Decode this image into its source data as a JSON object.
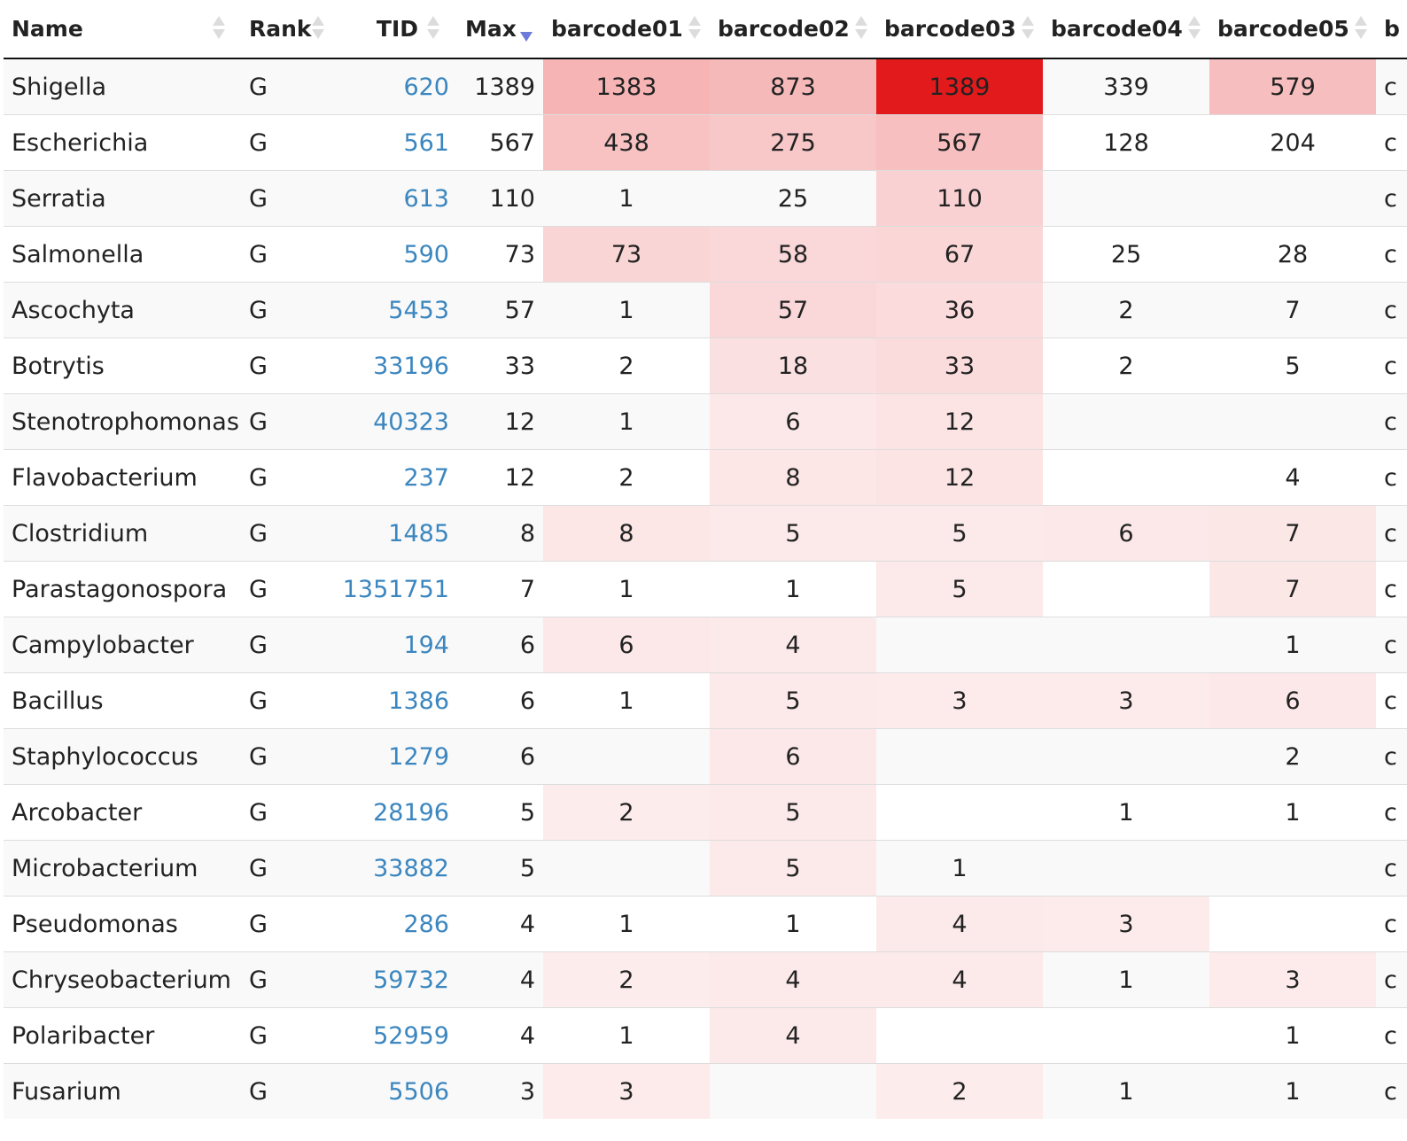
{
  "columns": {
    "name": "Name",
    "rank": "Rank",
    "tid": "TID",
    "max": "Max",
    "barcodes": [
      "barcode01",
      "barcode02",
      "barcode03",
      "barcode04",
      "barcode05"
    ],
    "next_partial": "b"
  },
  "sort": {
    "column": "Max",
    "direction": "descending"
  },
  "colors": {
    "heat_max": "#e31a1c",
    "link": "#3b86bf",
    "sort_active": "#6c7ad9"
  },
  "rows": [
    {
      "name": "Shigella",
      "rank": "G",
      "tid": "620",
      "max": "1389",
      "counts": [
        "1383",
        "873",
        "1389",
        "339",
        "579"
      ],
      "next_partial": "c"
    },
    {
      "name": "Escherichia",
      "rank": "G",
      "tid": "561",
      "max": "567",
      "counts": [
        "438",
        "275",
        "567",
        "128",
        "204"
      ],
      "next_partial": "c"
    },
    {
      "name": "Serratia",
      "rank": "G",
      "tid": "613",
      "max": "110",
      "counts": [
        "1",
        "25",
        "110",
        "",
        ""
      ],
      "next_partial": "c"
    },
    {
      "name": "Salmonella",
      "rank": "G",
      "tid": "590",
      "max": "73",
      "counts": [
        "73",
        "58",
        "67",
        "25",
        "28"
      ],
      "next_partial": "c"
    },
    {
      "name": "Ascochyta",
      "rank": "G",
      "tid": "5453",
      "max": "57",
      "counts": [
        "1",
        "57",
        "36",
        "2",
        "7"
      ],
      "next_partial": "c"
    },
    {
      "name": "Botrytis",
      "rank": "G",
      "tid": "33196",
      "max": "33",
      "counts": [
        "2",
        "18",
        "33",
        "2",
        "5"
      ],
      "next_partial": "c"
    },
    {
      "name": "Stenotrophomonas",
      "rank": "G",
      "tid": "40323",
      "max": "12",
      "counts": [
        "1",
        "6",
        "12",
        "",
        ""
      ],
      "next_partial": "c"
    },
    {
      "name": "Flavobacterium",
      "rank": "G",
      "tid": "237",
      "max": "12",
      "counts": [
        "2",
        "8",
        "12",
        "",
        "4"
      ],
      "next_partial": "c"
    },
    {
      "name": "Clostridium",
      "rank": "G",
      "tid": "1485",
      "max": "8",
      "counts": [
        "8",
        "5",
        "5",
        "6",
        "7"
      ],
      "next_partial": "c"
    },
    {
      "name": "Parastagonospora",
      "rank": "G",
      "tid": "1351751",
      "max": "7",
      "counts": [
        "1",
        "1",
        "5",
        "",
        "7"
      ],
      "next_partial": "c"
    },
    {
      "name": "Campylobacter",
      "rank": "G",
      "tid": "194",
      "max": "6",
      "counts": [
        "6",
        "4",
        "",
        "",
        "1"
      ],
      "next_partial": "c"
    },
    {
      "name": "Bacillus",
      "rank": "G",
      "tid": "1386",
      "max": "6",
      "counts": [
        "1",
        "5",
        "3",
        "3",
        "6"
      ],
      "next_partial": "c"
    },
    {
      "name": "Staphylococcus",
      "rank": "G",
      "tid": "1279",
      "max": "6",
      "counts": [
        "",
        "6",
        "",
        "",
        "2"
      ],
      "next_partial": "c"
    },
    {
      "name": "Arcobacter",
      "rank": "G",
      "tid": "28196",
      "max": "5",
      "counts": [
        "2",
        "5",
        "",
        "1",
        "1"
      ],
      "next_partial": "c"
    },
    {
      "name": "Microbacterium",
      "rank": "G",
      "tid": "33882",
      "max": "5",
      "counts": [
        "",
        "5",
        "1",
        "",
        ""
      ],
      "next_partial": "c"
    },
    {
      "name": "Pseudomonas",
      "rank": "G",
      "tid": "286",
      "max": "4",
      "counts": [
        "1",
        "1",
        "4",
        "3",
        ""
      ],
      "next_partial": "c"
    },
    {
      "name": "Chryseobacterium",
      "rank": "G",
      "tid": "59732",
      "max": "4",
      "counts": [
        "2",
        "4",
        "4",
        "1",
        "3"
      ],
      "next_partial": "c"
    },
    {
      "name": "Polaribacter",
      "rank": "G",
      "tid": "52959",
      "max": "4",
      "counts": [
        "1",
        "4",
        "",
        "",
        "1"
      ],
      "next_partial": "c"
    },
    {
      "name": "Fusarium",
      "rank": "G",
      "tid": "5506",
      "max": "3",
      "counts": [
        "3",
        "",
        "2",
        "1",
        "1"
      ],
      "next_partial": "c"
    }
  ]
}
